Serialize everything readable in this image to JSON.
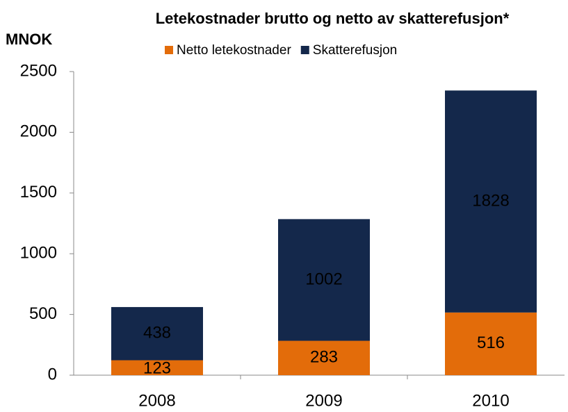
{
  "chart_data": {
    "type": "stacked-bar",
    "title": "Letekostnader brutto og netto av skatterefusjon*",
    "y_label": "MNOK",
    "categories": [
      "2008",
      "2009",
      "2010"
    ],
    "series": [
      {
        "name": "Netto letekostnader",
        "color": "#e36c0a",
        "values": [
          123,
          283,
          516
        ]
      },
      {
        "name": "Skatterefusjon",
        "color": "#14284b",
        "values": [
          438,
          1002,
          1828
        ]
      }
    ],
    "ylim": [
      0,
      2500
    ],
    "yticks": [
      0,
      500,
      1000,
      1500,
      2000,
      2500
    ],
    "legend": "top"
  }
}
